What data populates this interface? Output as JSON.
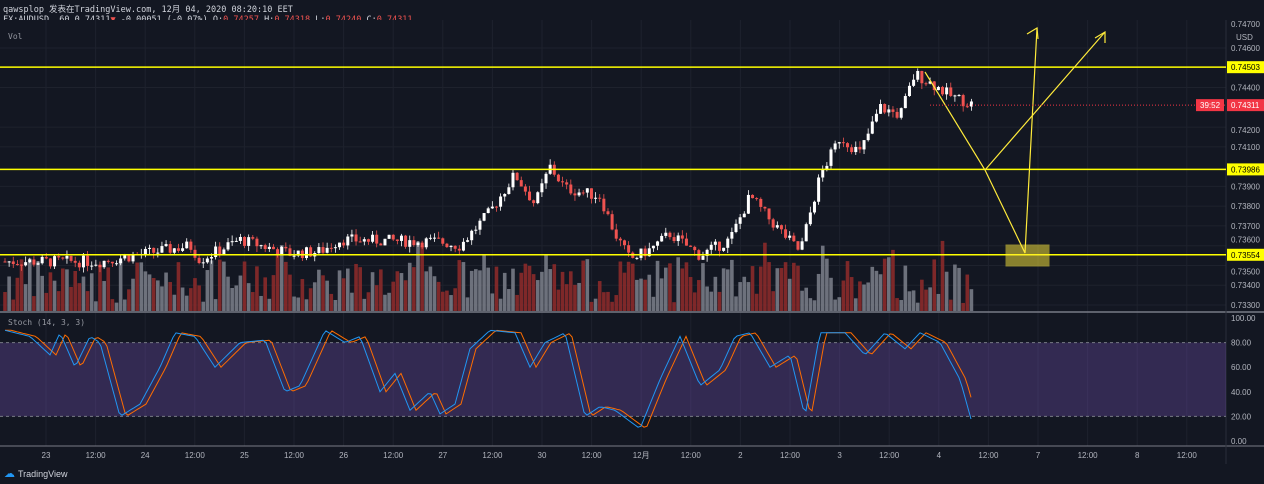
{
  "header": {
    "publisher_line": "qawsplop 发表在TradingView.com, 12月 04, 2020 08:20:10 EET",
    "symbol": "FX:AUDUSD, 60",
    "last": "0.74311",
    "change": "-0.00051 (-0.07%)",
    "open_label": "O:",
    "open": "0.74257",
    "high_label": "H:",
    "high": "0.74318",
    "low_label": "L:",
    "low": "0.74240",
    "close_label": "C:",
    "close": "0.74311",
    "direction_icon": "triangle-down-icon"
  },
  "panes": {
    "volume_label": "Vol",
    "stoch_label": "Stoch (14, 3, 3)"
  },
  "price_axis": {
    "currency": "USD",
    "ticks": [
      "0.74700",
      "0.74600",
      "0.74400",
      "0.74200",
      "0.74100",
      "0.73900",
      "0.73800",
      "0.73700",
      "0.73600",
      "0.73500",
      "0.73400",
      "0.73300"
    ],
    "levels": [
      {
        "value": "0.74503",
        "color": "#ffff00"
      },
      {
        "value": "0.73986",
        "color": "#ffff00"
      },
      {
        "value": "0.73554",
        "color": "#ffff00"
      }
    ],
    "current_price": "0.74311",
    "countdown": "39:52",
    "current_color": "#f23645"
  },
  "stoch_axis": {
    "ticks": [
      "100.00",
      "80.00",
      "60.00",
      "40.00",
      "20.00",
      "0.00"
    ],
    "band_color": "#7e57c2"
  },
  "time_axis": {
    "labels": [
      "23",
      "12:00",
      "24",
      "12:00",
      "25",
      "12:00",
      "26",
      "12:00",
      "27",
      "12:00",
      "30",
      "12:00",
      "12月",
      "12:00",
      "2",
      "12:00",
      "3",
      "12:00",
      "4",
      "12:00",
      "7",
      "12:00",
      "8",
      "12:00"
    ]
  },
  "colors": {
    "up": "#ffffff",
    "down": "#ef5350",
    "stoch_k": "#2196f3",
    "stoch_d": "#ff6d00",
    "drawing": "#ffeb3b"
  },
  "footer": {
    "brand": "TradingView"
  }
}
